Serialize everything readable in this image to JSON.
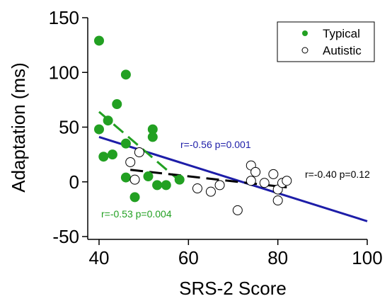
{
  "chart_data": {
    "type": "scatter",
    "xlabel": "SRS-2 Score",
    "ylabel": "Adaptation (ms)",
    "xlim": [
      40,
      100
    ],
    "ylim": [
      -50,
      150
    ],
    "x_ticks": [
      "40",
      "60",
      "80",
      "100"
    ],
    "y_ticks": [
      "150",
      "100",
      "50",
      "0",
      "-50"
    ],
    "legend": {
      "position": "top-right",
      "entries": [
        "Typical",
        "Autistic"
      ]
    },
    "colors": {
      "typical": "#22a022",
      "autistic": "#000000",
      "fit_all": "#1d1da8",
      "fit_typical": "#22a022",
      "fit_autistic": "#000000"
    },
    "series": [
      {
        "name": "Typical",
        "marker": "filled-circle",
        "points": [
          [
            40,
            129
          ],
          [
            40,
            48
          ],
          [
            41,
            23
          ],
          [
            42,
            56
          ],
          [
            43,
            25
          ],
          [
            44,
            71
          ],
          [
            46,
            98
          ],
          [
            46,
            35
          ],
          [
            46,
            4
          ],
          [
            48,
            -14
          ],
          [
            51,
            5
          ],
          [
            52,
            48
          ],
          [
            52,
            41
          ],
          [
            53,
            -3
          ],
          [
            55,
            -3
          ],
          [
            58,
            2
          ]
        ]
      },
      {
        "name": "Autistic",
        "marker": "open-circle",
        "points": [
          [
            47,
            18
          ],
          [
            48,
            2
          ],
          [
            49,
            27
          ],
          [
            62,
            -6
          ],
          [
            65,
            -9
          ],
          [
            67,
            -3
          ],
          [
            71,
            -26
          ],
          [
            74,
            15
          ],
          [
            74,
            1
          ],
          [
            75,
            9
          ],
          [
            77,
            -1
          ],
          [
            79,
            7
          ],
          [
            80,
            -7
          ],
          [
            80,
            -17
          ],
          [
            81,
            -1
          ],
          [
            82,
            1
          ]
        ]
      }
    ],
    "fits": [
      {
        "label": "r=-0.56 p=0.001",
        "style": "solid",
        "color_key": "fit_all",
        "x": [
          40,
          100
        ],
        "y": [
          41,
          -36
        ]
      },
      {
        "label": "r=-0.53 p=0.004",
        "style": "dashed",
        "color_key": "fit_typical",
        "x": [
          40,
          58
        ],
        "y": [
          64,
          1
        ]
      },
      {
        "label": "r=-0.40 p=0.12",
        "style": "dashed",
        "color_key": "fit_autistic",
        "x": [
          47,
          82
        ],
        "y": [
          11,
          -5
        ]
      }
    ]
  }
}
